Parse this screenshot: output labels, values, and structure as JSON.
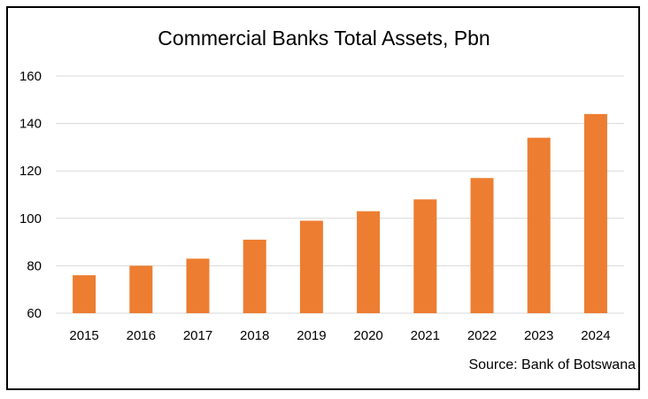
{
  "chart_data": {
    "type": "bar",
    "title": "Commercial Banks Total Assets, Pbn",
    "xlabel": "",
    "ylabel": "",
    "categories": [
      "2015",
      "2016",
      "2017",
      "2018",
      "2019",
      "2020",
      "2021",
      "2022",
      "2023",
      "2024"
    ],
    "values": [
      76,
      80,
      83,
      91,
      99,
      103,
      108,
      117,
      134,
      144
    ],
    "ylim": [
      60,
      160
    ],
    "yticks": [
      60,
      80,
      100,
      120,
      140,
      160
    ],
    "grid": true,
    "legend": "none",
    "bar_color": "#ED7D31",
    "gridline_color": "#D9D9D9",
    "source": "Source: Bank of Botswana"
  }
}
